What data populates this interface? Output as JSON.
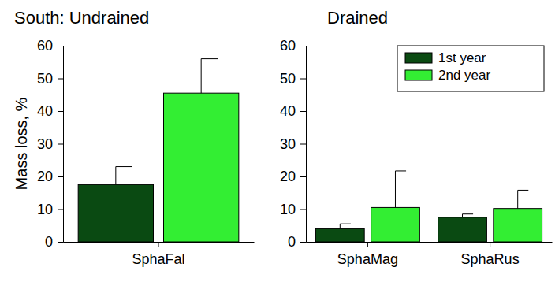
{
  "chart_data": [
    {
      "type": "bar",
      "title": "South: Undrained",
      "y_label": "Mass loss, %",
      "categories": [
        "SphaFal"
      ],
      "series": [
        {
          "color": "#0a4a12",
          "values": [
            17.5
          ],
          "errors": [
            5.5
          ]
        },
        {
          "color": "#33ee33",
          "values": [
            45.5
          ],
          "errors": [
            10.5
          ]
        }
      ],
      "ylim": [
        0,
        60
      ],
      "yticks": [
        0,
        10,
        20,
        30,
        40,
        50,
        60
      ]
    },
    {
      "type": "bar",
      "title": "Drained",
      "categories": [
        "SphaMag",
        "SphaRus"
      ],
      "series": [
        {
          "name": "1st year",
          "color": "#0a4a12",
          "values": [
            4,
            7.5
          ],
          "errors": [
            1.5,
            1
          ]
        },
        {
          "name": "2nd year",
          "color": "#33ee33",
          "values": [
            10.5,
            10.2
          ],
          "errors": [
            11.2,
            5.6
          ]
        }
      ],
      "ylim": [
        0,
        60
      ],
      "yticks": [
        0,
        10,
        20,
        30,
        40,
        50,
        60
      ],
      "legend": "upper right"
    }
  ]
}
